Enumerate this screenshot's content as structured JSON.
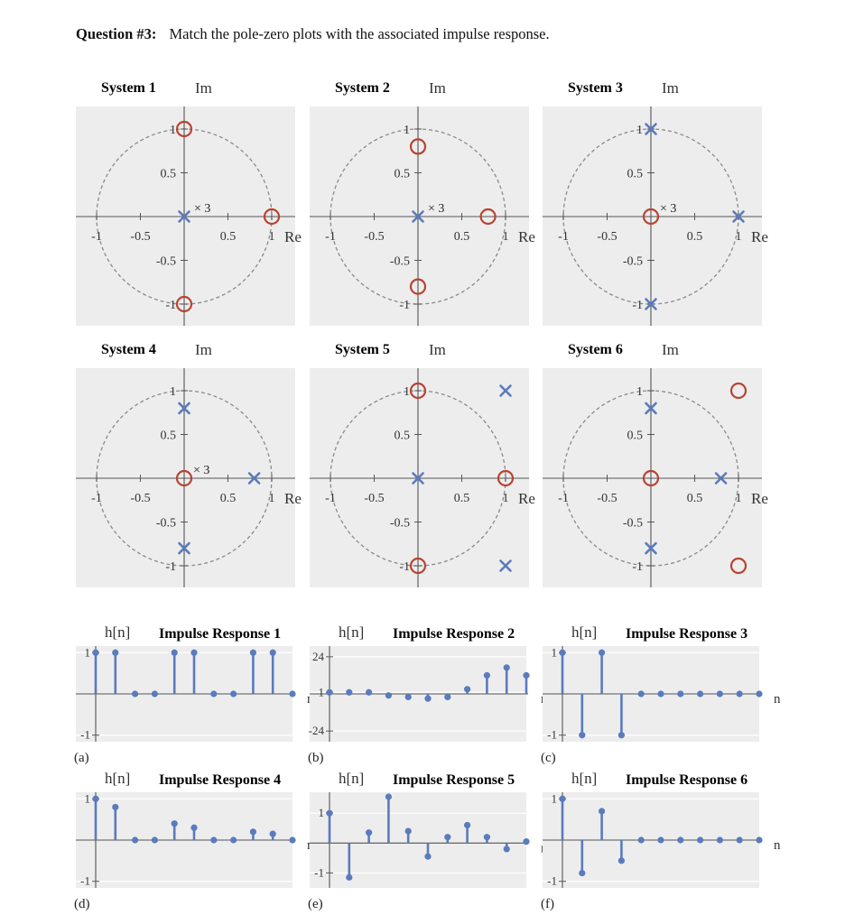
{
  "question": {
    "number": "Question #3:",
    "text": "Match the pole-zero plots with the associated impulse response."
  },
  "colors": {
    "panel_bg": "#ededed",
    "axis": "#555555",
    "circle": "#8a8a8a",
    "pole": "#5a7bbd",
    "zero": "#b84332",
    "stem": "#5a7bbd"
  },
  "pz_labels": {
    "im": "Im",
    "re": "Re"
  },
  "chart_data": [
    {
      "type": "scatter",
      "title": "System 1",
      "xlabel": "Re",
      "ylabel": "Im",
      "xlim": [
        -1.05,
        1.35
      ],
      "ylim": [
        -1.25,
        1.2
      ],
      "unit_circle": true,
      "x_ticks": [
        "-1",
        "-0.5",
        "0.5",
        "1"
      ],
      "y_ticks": [
        "1",
        "0.5",
        "-0.5",
        "-1"
      ],
      "poles": [
        {
          "re": 0,
          "im": 0,
          "multiplicity": "× 3"
        }
      ],
      "zeros": [
        {
          "re": 0,
          "im": 1
        },
        {
          "re": 1,
          "im": 0
        },
        {
          "re": 0,
          "im": -1
        }
      ]
    },
    {
      "type": "scatter",
      "title": "System 2",
      "xlabel": "Re",
      "ylabel": "Im",
      "xlim": [
        -1.05,
        1.35
      ],
      "ylim": [
        -1.25,
        1.2
      ],
      "unit_circle": true,
      "x_ticks": [
        "-1",
        "-0.5",
        "0.5",
        "1"
      ],
      "y_ticks": [
        "1",
        "0.5",
        "-0.5",
        "-1"
      ],
      "poles": [
        {
          "re": 0,
          "im": 0,
          "multiplicity": "× 3"
        }
      ],
      "zeros": [
        {
          "re": 0,
          "im": 0.8
        },
        {
          "re": 0.8,
          "im": 0
        },
        {
          "re": 0,
          "im": -0.8
        }
      ]
    },
    {
      "type": "scatter",
      "title": "System 3",
      "xlabel": "Re",
      "ylabel": "Im",
      "xlim": [
        -1.05,
        1.35
      ],
      "ylim": [
        -1.25,
        1.2
      ],
      "unit_circle": true,
      "x_ticks": [
        "-1",
        "-0.5",
        "0.5",
        "1"
      ],
      "y_ticks": [
        "1",
        "0.5",
        "-0.5",
        "-1"
      ],
      "poles": [
        {
          "re": 0,
          "im": 1
        },
        {
          "re": 1,
          "im": 0
        },
        {
          "re": 0,
          "im": -1
        }
      ],
      "zeros": [
        {
          "re": 0,
          "im": 0,
          "multiplicity": "× 3"
        }
      ]
    },
    {
      "type": "scatter",
      "title": "System 4",
      "xlabel": "Re",
      "ylabel": "Im",
      "xlim": [
        -1.05,
        1.35
      ],
      "ylim": [
        -1.25,
        1.2
      ],
      "unit_circle": true,
      "x_ticks": [
        "-1",
        "-0.5",
        "0.5",
        "1"
      ],
      "y_ticks": [
        "1",
        "0.5",
        "-0.5",
        "-1"
      ],
      "poles": [
        {
          "re": 0,
          "im": 0.8
        },
        {
          "re": 0.8,
          "im": 0
        },
        {
          "re": 0,
          "im": -0.8
        }
      ],
      "zeros": [
        {
          "re": 0,
          "im": 0,
          "multiplicity": "× 3"
        }
      ]
    },
    {
      "type": "scatter",
      "title": "System 5",
      "xlabel": "Re",
      "ylabel": "Im",
      "xlim": [
        -1.05,
        1.35
      ],
      "ylim": [
        -1.25,
        1.2
      ],
      "unit_circle": true,
      "x_ticks": [
        "-1",
        "-0.5",
        "0.5",
        "1"
      ],
      "y_ticks": [
        "1",
        "0.5",
        "-0.5",
        "-1"
      ],
      "poles": [
        {
          "re": 0,
          "im": 0
        },
        {
          "re": 1,
          "im": 1
        },
        {
          "re": 1,
          "im": -1
        }
      ],
      "zeros": [
        {
          "re": 0,
          "im": 1
        },
        {
          "re": 1,
          "im": 0
        },
        {
          "re": 0,
          "im": -1
        }
      ]
    },
    {
      "type": "scatter",
      "title": "System 6",
      "xlabel": "Re",
      "ylabel": "Im",
      "xlim": [
        -1.05,
        1.35
      ],
      "ylim": [
        -1.25,
        1.2
      ],
      "unit_circle": true,
      "x_ticks": [
        "-1",
        "-0.5",
        "0.5",
        "1"
      ],
      "y_ticks": [
        "1",
        "0.5",
        "-0.5",
        "-1"
      ],
      "poles": [
        {
          "re": 0,
          "im": 0.8
        },
        {
          "re": 0.8,
          "im": 0
        },
        {
          "re": 0,
          "im": -0.8
        }
      ],
      "zeros": [
        {
          "re": 0,
          "im": 0
        },
        {
          "re": 1,
          "im": 1
        },
        {
          "re": 1,
          "im": -1
        }
      ]
    },
    {
      "type": "stem",
      "title": "Impulse Response 1",
      "ylabel": "h[n]",
      "xlabel": "n",
      "letter": "(a)",
      "y_ticks": [
        "1",
        "-1"
      ],
      "ylim": [
        -1.05,
        1.05
      ],
      "x": [
        0,
        1,
        2,
        3,
        4,
        5,
        6,
        7,
        8,
        9,
        10
      ],
      "values": [
        1,
        1,
        0,
        0,
        1,
        1,
        0,
        0,
        1,
        1,
        0
      ]
    },
    {
      "type": "stem",
      "title": "Impulse Response 2",
      "ylabel": "h[n]",
      "xlabel": "n",
      "letter": "(b)",
      "y_ticks": [
        "24",
        "1",
        "-24"
      ],
      "ylim": [
        -28,
        28
      ],
      "x": [
        0,
        1,
        2,
        3,
        4,
        5,
        6,
        7,
        8,
        9,
        10
      ],
      "values": [
        1,
        1,
        1,
        -1,
        -2,
        -3,
        -2,
        3,
        12,
        17,
        12
      ]
    },
    {
      "type": "stem",
      "title": "Impulse Response 3",
      "ylabel": "h[n]",
      "xlabel": "n",
      "letter": "(c)",
      "y_ticks": [
        "1",
        "-1"
      ],
      "ylim": [
        -1.05,
        1.05
      ],
      "x": [
        0,
        1,
        2,
        3,
        4,
        5,
        6,
        7,
        8,
        9,
        10
      ],
      "values": [
        1,
        -1,
        1,
        -1,
        0,
        0,
        0,
        0,
        0,
        0,
        0
      ]
    },
    {
      "type": "stem",
      "title": "Impulse Response 4",
      "ylabel": "h[n]",
      "xlabel": "n",
      "letter": "(d)",
      "y_ticks": [
        "1",
        "-1"
      ],
      "ylim": [
        -1.05,
        1.05
      ],
      "x": [
        0,
        1,
        2,
        3,
        4,
        5,
        6,
        7,
        8,
        9,
        10
      ],
      "values": [
        1,
        0.8,
        0,
        0,
        0.4,
        0.3,
        0,
        0,
        0.2,
        0.15,
        0
      ]
    },
    {
      "type": "stem",
      "title": "Impulse Response 5",
      "ylabel": "h[n]",
      "xlabel": "n",
      "letter": "(e)",
      "y_ticks": [
        "1",
        "-1"
      ],
      "ylim": [
        -1.35,
        1.55
      ],
      "x": [
        0,
        1,
        2,
        3,
        4,
        5,
        6,
        7,
        8,
        9,
        10
      ],
      "values": [
        1,
        -1.15,
        0.35,
        1.55,
        0.4,
        -0.45,
        0.2,
        0.6,
        0.2,
        -0.2,
        0.05
      ]
    },
    {
      "type": "stem",
      "title": "Impulse Response 6",
      "ylabel": "h[n]",
      "xlabel": "n",
      "letter": "(f)",
      "y_ticks": [
        "1",
        "-1"
      ],
      "ylim": [
        -1.05,
        1.05
      ],
      "x": [
        0,
        1,
        2,
        3,
        4,
        5,
        6,
        7,
        8,
        9,
        10
      ],
      "values": [
        1,
        -0.8,
        0.7,
        -0.5,
        0,
        0,
        0,
        0,
        0,
        0,
        0
      ]
    }
  ]
}
